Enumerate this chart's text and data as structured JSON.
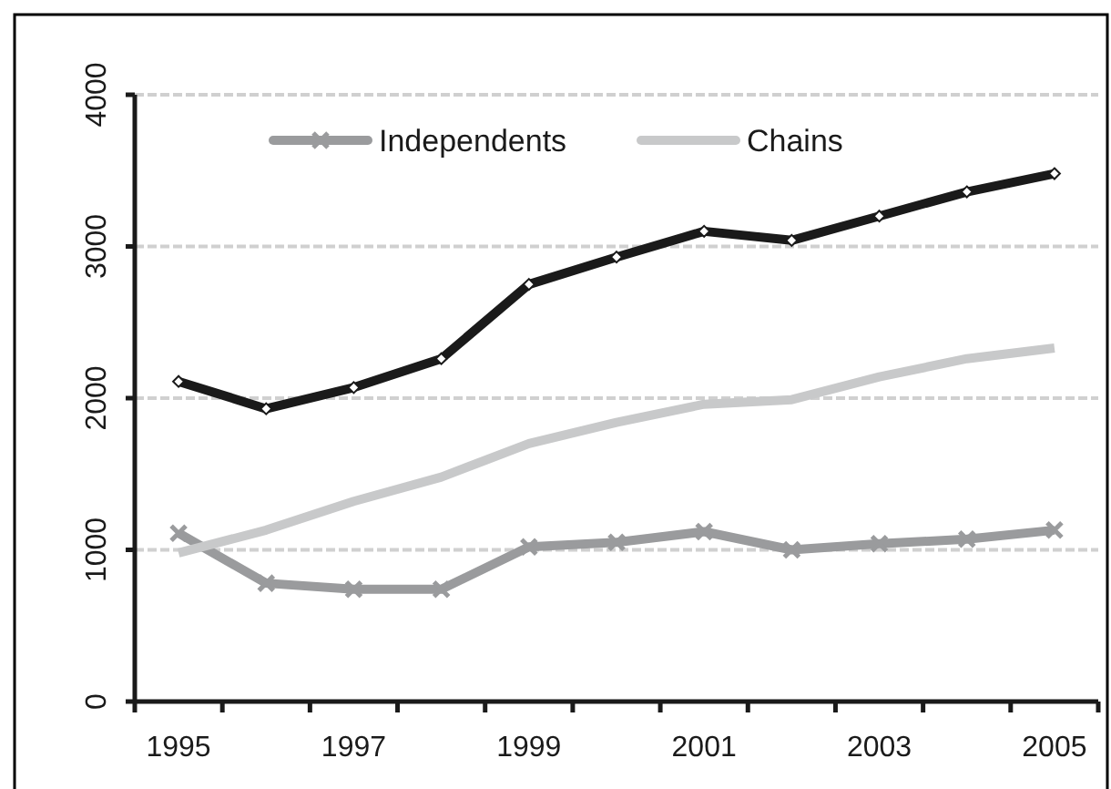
{
  "chart_data": {
    "type": "line",
    "categories": [
      "1995",
      null,
      "1997",
      null,
      "1999",
      null,
      "2001",
      null,
      "2003",
      null,
      "2005"
    ],
    "series": [
      {
        "color": "#1a1a1a",
        "marker": "diamond",
        "values": [
          2110,
          1930,
          2070,
          2260,
          2750,
          2930,
          3100,
          3040,
          3200,
          3360,
          3480
        ]
      },
      {
        "name": "Independents",
        "color": "#9a9b9d",
        "marker": "cross",
        "values": [
          1110,
          780,
          740,
          740,
          1020,
          1050,
          1120,
          1000,
          1040,
          1070,
          1130
        ]
      },
      {
        "name": "Chains",
        "color": "#c8c9ca",
        "marker": "none",
        "values": [
          980,
          1130,
          1320,
          1480,
          1700,
          1840,
          1960,
          1990,
          2140,
          2260,
          2330
        ]
      }
    ],
    "ylim": [
      0,
      4000
    ],
    "yticks": [
      0,
      1000,
      2000,
      3000,
      4000
    ],
    "grid": "y",
    "legend": "top",
    "line_style": "solid"
  }
}
